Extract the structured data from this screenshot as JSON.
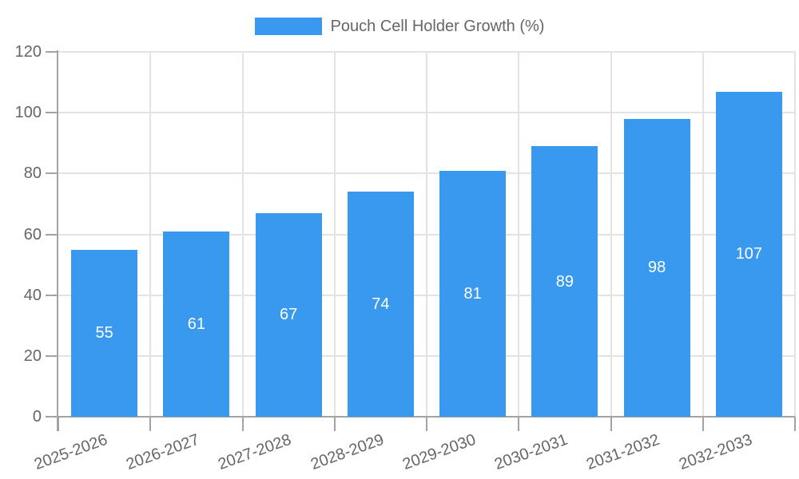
{
  "chart_data": {
    "type": "bar",
    "title": "Pouch Cell Holder Growth (%)",
    "categories": [
      "2025-2026",
      "2026-2027",
      "2027-2028",
      "2028-2029",
      "2029-2030",
      "2030-2031",
      "2031-2032",
      "2032-2033"
    ],
    "series": [
      {
        "name": "Pouch Cell Holder Growth (%)",
        "color": "#3899ee",
        "values": [
          55,
          61,
          67,
          74,
          81,
          89,
          98,
          107
        ]
      }
    ],
    "xlabel": "",
    "ylabel": "",
    "ylim": [
      0,
      120
    ],
    "ytick_step": 20,
    "yticks": [
      0,
      20,
      40,
      60,
      80,
      100,
      120
    ],
    "grid": true,
    "legend_position": "top-center",
    "x_tick_rotation_deg": -20,
    "value_label_position": "inside-center",
    "value_label_color": "#ffffff",
    "grid_color": "#e3e3e3",
    "axis_color": "#a3a3a3",
    "text_color": "#666666",
    "background_color": "#ffffff"
  }
}
